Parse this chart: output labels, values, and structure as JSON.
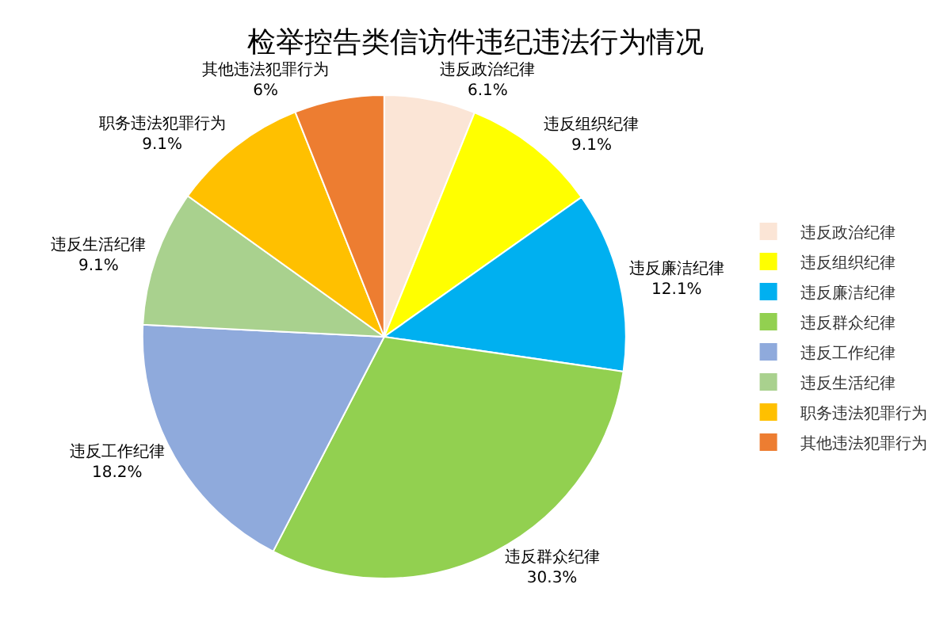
{
  "chart_data": {
    "type": "pie",
    "title": "检举控告类信访件违纪违法行为情况",
    "categories": [
      "违反政治纪律",
      "违反组织纪律",
      "违反廉洁纪律",
      "违反群众纪律",
      "违反工作纪律",
      "违反生活纪律",
      "职务违法犯罪行为",
      "其他违法犯罪行为"
    ],
    "values": [
      6.1,
      9.1,
      12.1,
      30.3,
      18.2,
      9.1,
      9.1,
      6
    ],
    "value_labels": [
      "6.1%",
      "9.1%",
      "12.1%",
      "30.3%",
      "18.2%",
      "9.1%",
      "9.1%",
      "6%"
    ],
    "colors": [
      "#fbe5d6",
      "#ffff00",
      "#00b0f0",
      "#92d050",
      "#8faadc",
      "#a9d18e",
      "#ffc000",
      "#ed7d31"
    ],
    "legend": "right"
  }
}
